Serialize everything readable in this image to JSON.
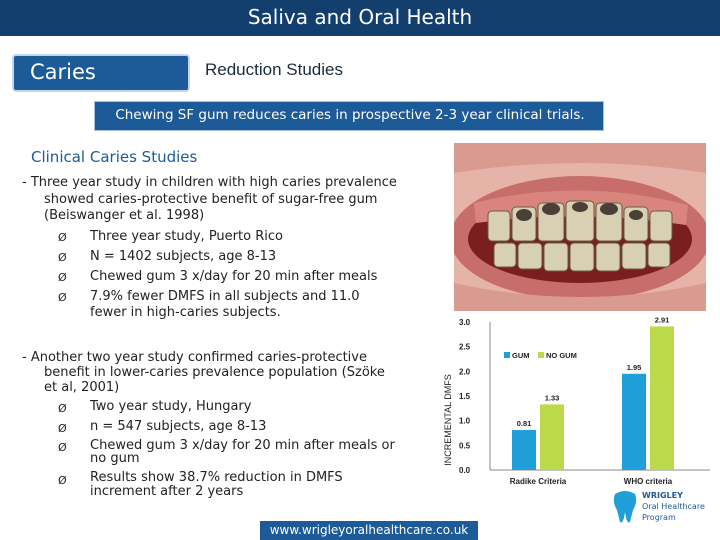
{
  "header": {
    "title": "Saliva and Oral Health"
  },
  "topic": {
    "label": "Caries",
    "subtitle": "Reduction Studies"
  },
  "banner": {
    "text": "Chewing SF gum reduces caries in prospective 2-3 year clinical trials."
  },
  "section": {
    "heading": "Clinical Caries Studies"
  },
  "study1": {
    "intro": [
      "- Three year study in children with high caries prevalence",
      "showed caries-protective benefit of sugar-free gum",
      "(Beiswanger et al. 1998)"
    ],
    "bullets": [
      "Three year study, Puerto Rico",
      "N = 1402 subjects, age 8-13",
      "Chewed gum 3 x/day for 20 min after meals",
      "7.9% fewer DMFS in all subjects and 11.0",
      "fewer in high-caries subjects."
    ]
  },
  "study2": {
    "intro": [
      "- Another two year study confirmed caries-protective",
      "benefit in lower-caries prevalence population (Szöke",
      "et al, 2001)"
    ],
    "bullets": [
      "Two year study, Hungary",
      "n = 547 subjects, age 8-13",
      "Chewed gum 3 x/day for 20 min after meals or",
      "no gum",
      "Results show 38.7% reduction in DMFS",
      "increment after 2 years"
    ]
  },
  "bullet_symbol": "Ø",
  "chart_data": {
    "type": "bar",
    "ylabel": "INCREMENTAL DMFS",
    "categories": [
      "Radike Criteria",
      "WHO criteria"
    ],
    "series": [
      {
        "name": "GUM",
        "values": [
          0.81,
          1.95
        ],
        "labels": [
          "0.81",
          "1.95"
        ],
        "color": "#1f9fd8"
      },
      {
        "name": "NO GUM",
        "values": [
          1.33,
          2.91
        ],
        "labels": [
          "1.33",
          "2.91"
        ],
        "color": "#bcd94a"
      }
    ],
    "ylim": [
      0,
      3.0
    ],
    "ticks": [
      "0.0",
      "0.5",
      "1.0",
      "1.5",
      "2.0",
      "2.5",
      "3.0"
    ],
    "legend": "top-left"
  },
  "logo": {
    "line1": "WRIGLEY",
    "line2": "Oral Healthcare",
    "line3": "Program"
  },
  "footer": {
    "url": "www.wrigleyoralhealthcare.co.uk"
  },
  "colors": {
    "navy": "#123f6e",
    "blue": "#1c5a98",
    "gum": "#1f9fd8",
    "nogum": "#bcd94a"
  }
}
